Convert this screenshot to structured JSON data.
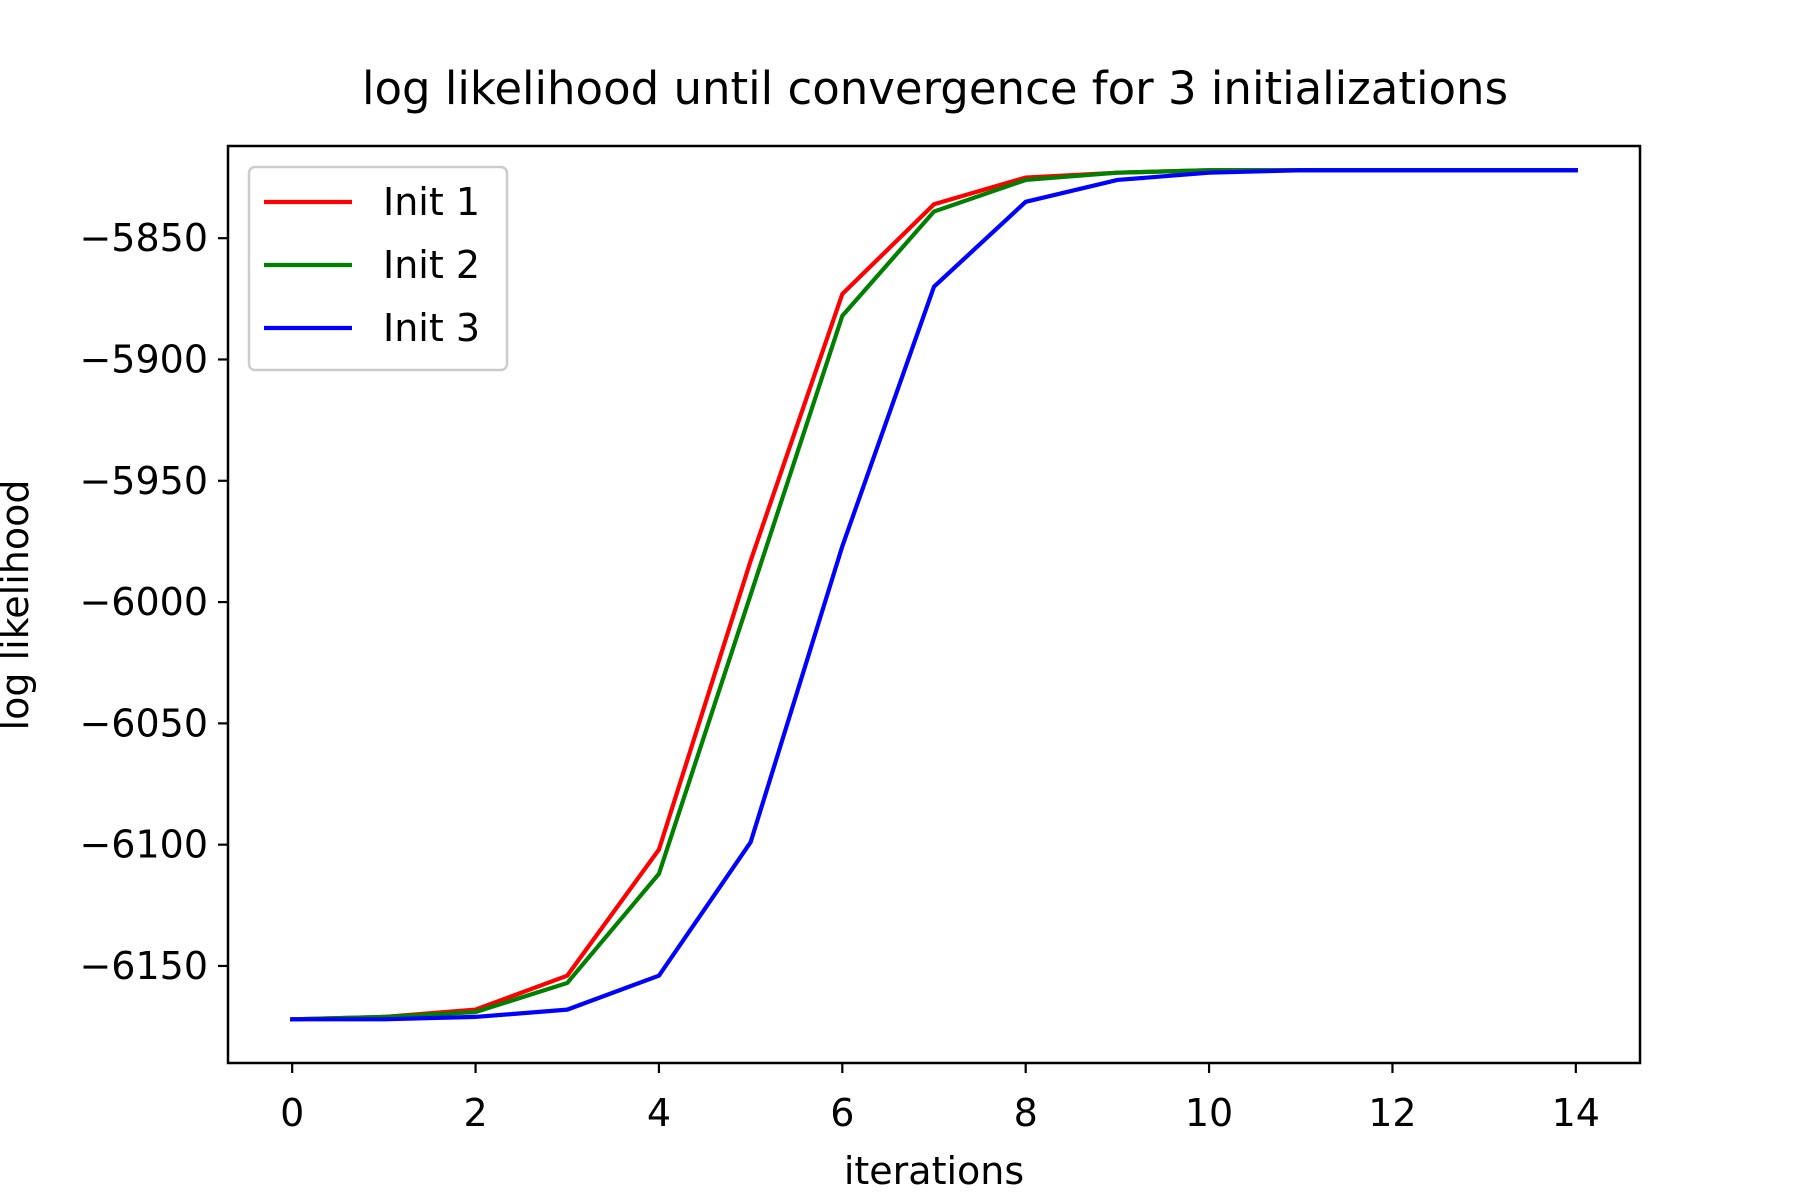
{
  "chart_data": {
    "type": "line",
    "title": "log likelihood until convergence for 3 initializations",
    "xlabel": "iterations",
    "ylabel": "log likelihood",
    "xlim": [
      -0.7,
      14.7
    ],
    "ylim": [
      -6190,
      -5812
    ],
    "x_ticks": [
      0,
      2,
      4,
      6,
      8,
      10,
      12,
      14
    ],
    "x_tick_labels": [
      "0",
      "2",
      "4",
      "6",
      "8",
      "10",
      "12",
      "14"
    ],
    "y_ticks": [
      -5850,
      -5900,
      -5950,
      -6000,
      -6050,
      -6100,
      -6150
    ],
    "y_tick_labels": [
      "−5850",
      "−5900",
      "−5950",
      "−6000",
      "−6050",
      "−6100",
      "−6150"
    ],
    "grid": false,
    "legend_position": "upper-left",
    "x": [
      0,
      1,
      2,
      3,
      4,
      5,
      6,
      7,
      8,
      9,
      10,
      11,
      12,
      13,
      14
    ],
    "series": [
      {
        "name": "Init 1",
        "color": "#ff0000",
        "values": [
          -6172,
          -6171,
          -6168,
          -6154,
          -6102,
          -5983,
          -5873,
          -5836,
          -5825,
          -5823,
          -5822,
          -5822,
          -5822,
          -5822,
          -5822
        ]
      },
      {
        "name": "Init 2",
        "color": "#008000",
        "values": [
          -6172,
          -6171,
          -6169,
          -6157,
          -6112,
          -5997,
          -5882,
          -5839,
          -5826,
          -5823,
          -5822,
          -5822,
          -5822,
          -5822,
          -5822
        ]
      },
      {
        "name": "Init 3",
        "color": "#0000ff",
        "values": [
          -6172,
          -6172,
          -6171,
          -6168,
          -6154,
          -6099,
          -5977,
          -5870,
          -5835,
          -5826,
          -5823,
          -5822,
          -5822,
          -5822,
          -5822
        ]
      }
    ]
  }
}
